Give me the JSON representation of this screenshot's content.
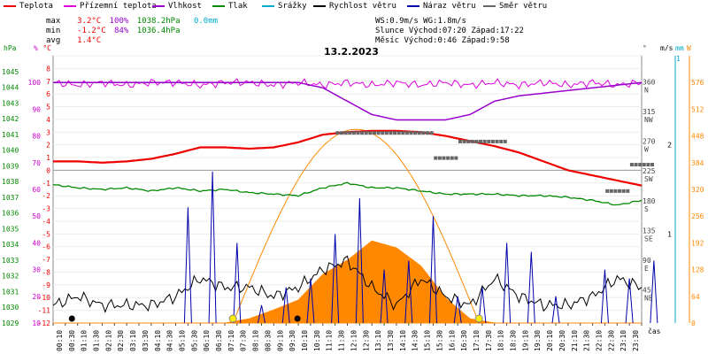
{
  "legend": [
    {
      "label": "Teplota",
      "color": "#ee0000"
    },
    {
      "label": "Přízemní teplota",
      "color": "#dd00dd"
    },
    {
      "label": "Vlhkost",
      "color": "#9900cc"
    },
    {
      "label": "Tlak",
      "color": "#008800"
    },
    {
      "label": "Srážky",
      "color": "#00aacc"
    },
    {
      "label": "Rychlost větru",
      "color": "#000000"
    },
    {
      "label": "Náraz větru",
      "color": "#0000aa"
    },
    {
      "label": "Směr větru",
      "color": "#666666"
    }
  ],
  "stats": {
    "max": {
      "label": "max",
      "temp": "3.2°C",
      "hum": "100%",
      "press": "1038.2hPa",
      "rain": "0.0mm"
    },
    "min": {
      "label": "min",
      "temp": "-1.2°C",
      "hum": "84%",
      "press": "1036.4hPa"
    },
    "avg": {
      "label": "avg",
      "temp": "1.4°C"
    }
  },
  "info": {
    "line1": "WS:0.9m/s    WG:1.8m/s",
    "line2": "Slunce Východ:07:20  Západ:17:22",
    "line3": "Měsíc  Východ:0:46   Západ:9:58"
  },
  "title": "13.2.2023",
  "axes": {
    "hpa_label": "hPa",
    "pct_label": "%",
    "degc_label": "°C",
    "deg_label": "°",
    "ms_label": "m/s",
    "mm_label": "mm",
    "w_label": "W",
    "time_label": "čas",
    "hpa_ticks": [
      "1045",
      "1044",
      "1043",
      "1042",
      "1041",
      "1040",
      "1039",
      "1038",
      "1037",
      "1036",
      "1035",
      "1034",
      "1033",
      "1032",
      "1031",
      "1030",
      "1029"
    ],
    "pct_ticks": [
      "100",
      "90",
      "80",
      "70",
      "60",
      "50",
      "40",
      "30",
      "20",
      "10"
    ],
    "degc_ticks": [
      "8",
      "7",
      "6",
      "5",
      "4",
      "3",
      "2",
      "1",
      "0",
      "-1",
      "-2",
      "-3",
      "-4",
      "-5",
      "-6",
      "-7",
      "-8",
      "-9",
      "-10",
      "-11",
      "-12"
    ],
    "dir_ticks": [
      {
        "deg": "360",
        "dir": "N"
      },
      {
        "deg": "315",
        "dir": "NW"
      },
      {
        "deg": "270",
        "dir": "W"
      },
      {
        "deg": "225",
        "dir": "SW"
      },
      {
        "deg": "180",
        "dir": "S"
      },
      {
        "deg": "135",
        "dir": "SE"
      },
      {
        "deg": "90",
        "dir": "E"
      },
      {
        "deg": "45",
        "dir": "NE"
      }
    ],
    "ms_ticks": [
      "1",
      "2"
    ],
    "mm_ticks": [
      "1"
    ],
    "w_ticks": [
      "576",
      "512",
      "448",
      "384",
      "320",
      "256",
      "192",
      "128",
      "64",
      "0"
    ],
    "time_ticks": [
      "00:10",
      "00:30",
      "01:10",
      "01:30",
      "02:10",
      "02:30",
      "03:10",
      "03:30",
      "04:10",
      "04:30",
      "05:10",
      "05:30",
      "06:10",
      "06:30",
      "07:10",
      "07:30",
      "08:10",
      "08:30",
      "09:10",
      "09:30",
      "10:10",
      "10:30",
      "11:10",
      "11:30",
      "12:10",
      "12:30",
      "13:10",
      "13:30",
      "14:10",
      "14:30",
      "15:10",
      "15:30",
      "16:10",
      "16:30",
      "17:10",
      "17:30",
      "18:10",
      "18:30",
      "19:10",
      "19:30",
      "20:10",
      "20:30",
      "21:10",
      "21:30",
      "22:10",
      "22:30",
      "23:10",
      "23:30"
    ]
  },
  "chart_data": {
    "type": "line",
    "title": "13.2.2023",
    "x_hours": [
      0,
      1,
      2,
      3,
      4,
      5,
      6,
      7,
      8,
      9,
      10,
      11,
      12,
      13,
      14,
      15,
      16,
      17,
      18,
      19,
      20,
      21,
      22,
      23,
      24
    ],
    "series": [
      {
        "name": "Teplota",
        "unit": "°C",
        "values": [
          0.7,
          0.7,
          0.6,
          0.7,
          0.9,
          1.3,
          1.8,
          1.8,
          1.7,
          1.8,
          2.2,
          2.8,
          3.0,
          3.1,
          3.1,
          3.0,
          2.7,
          2.3,
          1.9,
          1.4,
          0.7,
          0.0,
          -0.4,
          -0.8,
          -1.2
        ]
      },
      {
        "name": "Přízemní teplota",
        "unit": "%",
        "values": [
          100,
          99,
          100,
          99,
          100,
          100,
          99,
          100,
          100,
          99,
          100,
          99,
          100,
          99,
          100,
          99,
          100,
          99,
          100,
          99,
          100,
          99,
          100,
          99,
          100
        ]
      },
      {
        "name": "Vlhkost",
        "unit": "%",
        "values": [
          100,
          100,
          100,
          100,
          100,
          100,
          100,
          100,
          100,
          100,
          100,
          98,
          93,
          88,
          86,
          86,
          86,
          88,
          93,
          95,
          96,
          97,
          98,
          99,
          100
        ]
      },
      {
        "name": "Tlak",
        "unit": "hPa",
        "values": [
          1037.8,
          1037.6,
          1037.5,
          1037.6,
          1037.4,
          1037.6,
          1037.4,
          1037.5,
          1037.3,
          1037.2,
          1037.1,
          1037.6,
          1037.9,
          1037.6,
          1037.6,
          1037.4,
          1037.2,
          1037.2,
          1037.2,
          1037.1,
          1037.1,
          1037.0,
          1036.8,
          1036.5,
          1036.8
        ]
      },
      {
        "name": "Srážky",
        "unit": "mm",
        "values": [
          0,
          0,
          0,
          0,
          0,
          0,
          0,
          0,
          0,
          0,
          0,
          0,
          0,
          0,
          0,
          0,
          0,
          0,
          0,
          0,
          0,
          0,
          0,
          0,
          0
        ]
      },
      {
        "name": "Rychlost větru",
        "unit": "m/s",
        "values": [
          0.2,
          0.3,
          0.2,
          0.2,
          0.2,
          0.3,
          0.5,
          0.4,
          0.4,
          0.3,
          0.4,
          0.6,
          0.7,
          0.4,
          0.2,
          0.5,
          0.3,
          0.2,
          0.5,
          0.3,
          0.2,
          0.2,
          0.3,
          0.5,
          0.4
        ]
      },
      {
        "name": "Náraz větru",
        "unit": "m/s",
        "values": [
          0,
          0,
          0,
          0,
          0,
          1.3,
          1.7,
          0.9,
          0.2,
          0.4,
          0.5,
          1.0,
          1.4,
          0.6,
          0.7,
          1.2,
          0.3,
          0.4,
          0.9,
          0.8,
          0.3,
          0.0,
          0.6,
          0.5,
          0.7
        ]
      },
      {
        "name": "Směr větru",
        "unit": "°",
        "values": [
          null,
          null,
          null,
          null,
          null,
          null,
          null,
          null,
          null,
          null,
          null,
          null,
          288,
          288,
          288,
          288,
          250,
          275,
          275,
          null,
          null,
          null,
          null,
          200,
          240
        ]
      },
      {
        "name": "Sluneční záření",
        "unit": "W",
        "values": [
          0,
          0,
          0,
          0,
          0,
          0,
          0,
          0,
          10,
          25,
          55,
          110,
          150,
          190,
          180,
          130,
          60,
          10,
          0,
          0,
          0,
          0,
          0,
          0,
          0
        ]
      }
    ],
    "theoretical_radiation_peak_W": 464,
    "axes_ranges": {
      "temp_c": [
        -12,
        9
      ],
      "pressure_hpa": [
        1029,
        1046
      ],
      "humidity_pct": [
        10,
        110
      ],
      "wind_ms": [
        0,
        3
      ],
      "radiation_w": [
        0,
        640
      ],
      "direction_deg": [
        0,
        405
      ]
    }
  }
}
